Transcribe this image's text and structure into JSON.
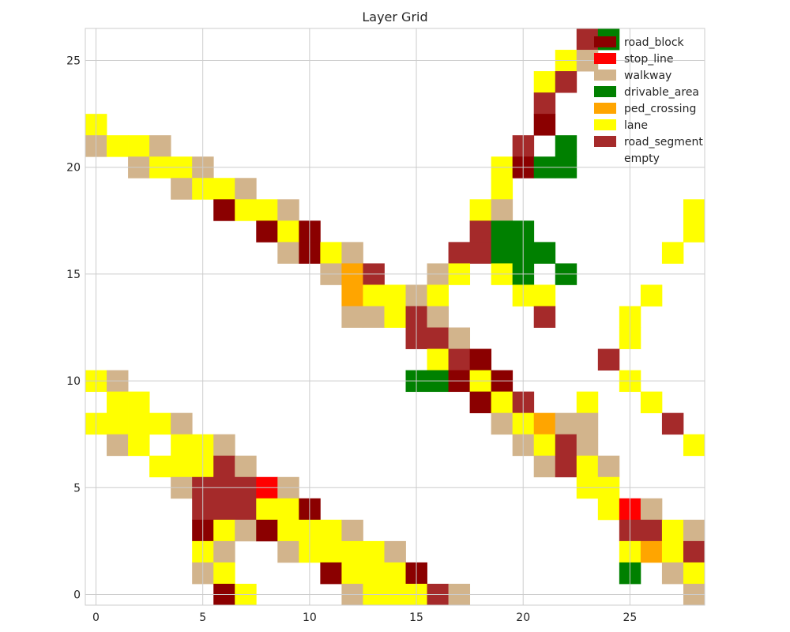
{
  "chart_data": {
    "type": "heatmap",
    "title": "Layer Grid",
    "xlabel": "",
    "ylabel": "",
    "xlim": [
      -0.5,
      28.5
    ],
    "ylim": [
      -0.5,
      26.5
    ],
    "xticks": [
      0,
      5,
      10,
      15,
      20,
      25
    ],
    "yticks": [
      0,
      5,
      10,
      15,
      20,
      25
    ],
    "grid": true,
    "legend_position": "top-right",
    "categories": [
      {
        "name": "road_block",
        "color": "#8b0000"
      },
      {
        "name": "stop_line",
        "color": "#ff0000"
      },
      {
        "name": "walkway",
        "color": "#d2b48c"
      },
      {
        "name": "drivable_area",
        "color": "#008000"
      },
      {
        "name": "ped_crossing",
        "color": "#ffa500"
      },
      {
        "name": "lane",
        "color": "#ffff00"
      },
      {
        "name": "road_segment",
        "color": "#a52a2a"
      },
      {
        "name": "empty",
        "color": "#ffffff"
      }
    ],
    "cells": [
      {
        "row": 26,
        "cells": [
          [
            23,
            "road_segment"
          ],
          [
            24,
            "drivable_area"
          ]
        ]
      },
      {
        "row": 25,
        "cells": [
          [
            22,
            "lane"
          ],
          [
            23,
            "walkway"
          ]
        ]
      },
      {
        "row": 24,
        "cells": [
          [
            21,
            "lane"
          ],
          [
            22,
            "road_segment"
          ]
        ]
      },
      {
        "row": 23,
        "cells": [
          [
            21,
            "road_segment"
          ]
        ]
      },
      {
        "row": 22,
        "cells": [
          [
            0,
            "lane"
          ],
          [
            21,
            "road_block"
          ]
        ]
      },
      {
        "row": 21,
        "cells": [
          [
            0,
            "walkway"
          ],
          [
            1,
            "lane"
          ],
          [
            2,
            "lane"
          ],
          [
            3,
            "walkway"
          ],
          [
            20,
            "road_segment"
          ],
          [
            22,
            "drivable_area"
          ]
        ]
      },
      {
        "row": 20,
        "cells": [
          [
            2,
            "walkway"
          ],
          [
            3,
            "lane"
          ],
          [
            4,
            "lane"
          ],
          [
            5,
            "walkway"
          ],
          [
            19,
            "lane"
          ],
          [
            20,
            "road_block"
          ],
          [
            21,
            "drivable_area"
          ],
          [
            22,
            "drivable_area"
          ]
        ]
      },
      {
        "row": 19,
        "cells": [
          [
            4,
            "walkway"
          ],
          [
            5,
            "lane"
          ],
          [
            6,
            "lane"
          ],
          [
            7,
            "walkway"
          ],
          [
            19,
            "lane"
          ]
        ]
      },
      {
        "row": 18,
        "cells": [
          [
            6,
            "road_block"
          ],
          [
            7,
            "lane"
          ],
          [
            8,
            "lane"
          ],
          [
            9,
            "walkway"
          ],
          [
            18,
            "lane"
          ],
          [
            19,
            "walkway"
          ],
          [
            28,
            "lane"
          ]
        ]
      },
      {
        "row": 17,
        "cells": [
          [
            8,
            "road_block"
          ],
          [
            9,
            "lane"
          ],
          [
            10,
            "road_block"
          ],
          [
            18,
            "road_segment"
          ],
          [
            19,
            "drivable_area"
          ],
          [
            20,
            "drivable_area"
          ],
          [
            28,
            "lane"
          ]
        ]
      },
      {
        "row": 16,
        "cells": [
          [
            9,
            "walkway"
          ],
          [
            10,
            "road_block"
          ],
          [
            11,
            "lane"
          ],
          [
            12,
            "walkway"
          ],
          [
            17,
            "road_segment"
          ],
          [
            18,
            "road_segment"
          ],
          [
            19,
            "drivable_area"
          ],
          [
            20,
            "drivable_area"
          ],
          [
            21,
            "drivable_area"
          ],
          [
            27,
            "lane"
          ]
        ]
      },
      {
        "row": 15,
        "cells": [
          [
            11,
            "walkway"
          ],
          [
            12,
            "ped_crossing"
          ],
          [
            13,
            "road_segment"
          ],
          [
            16,
            "walkway"
          ],
          [
            17,
            "lane"
          ],
          [
            19,
            "lane"
          ],
          [
            20,
            "drivable_area"
          ],
          [
            22,
            "drivable_area"
          ]
        ]
      },
      {
        "row": 14,
        "cells": [
          [
            12,
            "ped_crossing"
          ],
          [
            13,
            "lane"
          ],
          [
            14,
            "lane"
          ],
          [
            15,
            "walkway"
          ],
          [
            16,
            "lane"
          ],
          [
            20,
            "lane"
          ],
          [
            21,
            "lane"
          ],
          [
            26,
            "lane"
          ]
        ]
      },
      {
        "row": 13,
        "cells": [
          [
            12,
            "walkway"
          ],
          [
            13,
            "walkway"
          ],
          [
            14,
            "lane"
          ],
          [
            15,
            "road_segment"
          ],
          [
            16,
            "walkway"
          ],
          [
            21,
            "road_segment"
          ],
          [
            25,
            "lane"
          ]
        ]
      },
      {
        "row": 12,
        "cells": [
          [
            15,
            "road_segment"
          ],
          [
            16,
            "road_segment"
          ],
          [
            17,
            "walkway"
          ],
          [
            25,
            "lane"
          ]
        ]
      },
      {
        "row": 11,
        "cells": [
          [
            16,
            "lane"
          ],
          [
            17,
            "road_segment"
          ],
          [
            18,
            "road_block"
          ],
          [
            24,
            "road_segment"
          ]
        ]
      },
      {
        "row": 10,
        "cells": [
          [
            0,
            "lane"
          ],
          [
            1,
            "walkway"
          ],
          [
            15,
            "drivable_area"
          ],
          [
            16,
            "drivable_area"
          ],
          [
            17,
            "road_block"
          ],
          [
            18,
            "lane"
          ],
          [
            19,
            "road_block"
          ],
          [
            25,
            "lane"
          ]
        ]
      },
      {
        "row": 9,
        "cells": [
          [
            1,
            "lane"
          ],
          [
            2,
            "lane"
          ],
          [
            18,
            "road_block"
          ],
          [
            19,
            "lane"
          ],
          [
            20,
            "road_segment"
          ],
          [
            23,
            "lane"
          ],
          [
            26,
            "lane"
          ]
        ]
      },
      {
        "row": 8,
        "cells": [
          [
            0,
            "lane"
          ],
          [
            1,
            "lane"
          ],
          [
            2,
            "lane"
          ],
          [
            3,
            "lane"
          ],
          [
            4,
            "walkway"
          ],
          [
            19,
            "walkway"
          ],
          [
            20,
            "lane"
          ],
          [
            21,
            "ped_crossing"
          ],
          [
            22,
            "walkway"
          ],
          [
            23,
            "walkway"
          ],
          [
            27,
            "road_segment"
          ]
        ]
      },
      {
        "row": 7,
        "cells": [
          [
            1,
            "walkway"
          ],
          [
            2,
            "lane"
          ],
          [
            4,
            "lane"
          ],
          [
            5,
            "lane"
          ],
          [
            6,
            "walkway"
          ],
          [
            20,
            "walkway"
          ],
          [
            21,
            "lane"
          ],
          [
            22,
            "road_segment"
          ],
          [
            23,
            "walkway"
          ],
          [
            28,
            "lane"
          ]
        ]
      },
      {
        "row": 6,
        "cells": [
          [
            3,
            "lane"
          ],
          [
            4,
            "lane"
          ],
          [
            5,
            "lane"
          ],
          [
            6,
            "road_segment"
          ],
          [
            7,
            "walkway"
          ],
          [
            21,
            "walkway"
          ],
          [
            22,
            "road_segment"
          ],
          [
            23,
            "lane"
          ],
          [
            24,
            "walkway"
          ]
        ]
      },
      {
        "row": 5,
        "cells": [
          [
            4,
            "walkway"
          ],
          [
            5,
            "road_segment"
          ],
          [
            6,
            "road_segment"
          ],
          [
            7,
            "road_segment"
          ],
          [
            8,
            "stop_line"
          ],
          [
            9,
            "walkway"
          ],
          [
            23,
            "lane"
          ],
          [
            24,
            "lane"
          ]
        ]
      },
      {
        "row": 4,
        "cells": [
          [
            5,
            "road_segment"
          ],
          [
            6,
            "road_segment"
          ],
          [
            7,
            "road_segment"
          ],
          [
            8,
            "lane"
          ],
          [
            9,
            "lane"
          ],
          [
            10,
            "road_block"
          ],
          [
            24,
            "lane"
          ],
          [
            25,
            "stop_line"
          ],
          [
            26,
            "walkway"
          ]
        ]
      },
      {
        "row": 3,
        "cells": [
          [
            5,
            "road_block"
          ],
          [
            6,
            "lane"
          ],
          [
            7,
            "walkway"
          ],
          [
            8,
            "road_block"
          ],
          [
            9,
            "lane"
          ],
          [
            10,
            "lane"
          ],
          [
            11,
            "lane"
          ],
          [
            12,
            "walkway"
          ],
          [
            25,
            "road_segment"
          ],
          [
            26,
            "road_segment"
          ],
          [
            27,
            "lane"
          ],
          [
            28,
            "walkway"
          ]
        ]
      },
      {
        "row": 2,
        "cells": [
          [
            5,
            "lane"
          ],
          [
            6,
            "walkway"
          ],
          [
            9,
            "walkway"
          ],
          [
            10,
            "lane"
          ],
          [
            11,
            "lane"
          ],
          [
            12,
            "lane"
          ],
          [
            13,
            "lane"
          ],
          [
            14,
            "walkway"
          ],
          [
            25,
            "lane"
          ],
          [
            26,
            "ped_crossing"
          ],
          [
            27,
            "lane"
          ],
          [
            28,
            "road_segment"
          ]
        ]
      },
      {
        "row": 1,
        "cells": [
          [
            5,
            "walkway"
          ],
          [
            6,
            "lane"
          ],
          [
            11,
            "road_block"
          ],
          [
            12,
            "lane"
          ],
          [
            13,
            "lane"
          ],
          [
            14,
            "lane"
          ],
          [
            15,
            "road_block"
          ],
          [
            25,
            "drivable_area"
          ],
          [
            27,
            "walkway"
          ],
          [
            28,
            "lane"
          ]
        ]
      },
      {
        "row": 0,
        "cells": [
          [
            6,
            "road_block"
          ],
          [
            7,
            "lane"
          ],
          [
            12,
            "walkway"
          ],
          [
            13,
            "lane"
          ],
          [
            14,
            "lane"
          ],
          [
            15,
            "lane"
          ],
          [
            16,
            "road_segment"
          ],
          [
            17,
            "walkway"
          ],
          [
            28,
            "walkway"
          ]
        ]
      }
    ]
  }
}
